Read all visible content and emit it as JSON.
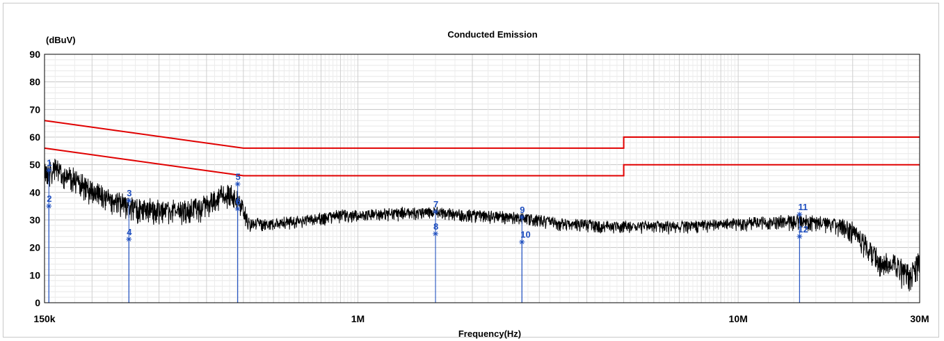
{
  "chart_data": {
    "type": "line",
    "title": "Conducted Emission",
    "ylabel": "(dBuV)",
    "xlabel": "Frequency(Hz)",
    "x_scale": "log",
    "xlim": [
      150000,
      30000000
    ],
    "ylim": [
      0,
      90
    ],
    "yticks": [
      0,
      10,
      20,
      30,
      40,
      50,
      60,
      70,
      80,
      90
    ],
    "xticks": [
      {
        "value": 150000,
        "label": "150k"
      },
      {
        "value": 1000000,
        "label": "1M"
      },
      {
        "value": 10000000,
        "label": "10M"
      },
      {
        "value": 30000000,
        "label": "30M"
      }
    ],
    "grid": true,
    "limit_lines": [
      {
        "points": [
          [
            150000,
            66
          ],
          [
            500000,
            56
          ],
          [
            5000000,
            56
          ],
          [
            5000000,
            60
          ],
          [
            30000000,
            60
          ]
        ],
        "color": "#e00000"
      },
      {
        "points": [
          [
            150000,
            56
          ],
          [
            500000,
            46
          ],
          [
            5000000,
            46
          ],
          [
            5000000,
            50
          ],
          [
            30000000,
            50
          ]
        ],
        "color": "#e00000"
      }
    ],
    "trace": {
      "color": "#000000",
      "envelope": [
        [
          150000,
          50
        ],
        [
          160000,
          51
        ],
        [
          175000,
          48
        ],
        [
          190000,
          45
        ],
        [
          210000,
          42
        ],
        [
          230000,
          39
        ],
        [
          260000,
          37
        ],
        [
          300000,
          36
        ],
        [
          350000,
          36
        ],
        [
          400000,
          38
        ],
        [
          430000,
          41
        ],
        [
          460000,
          42
        ],
        [
          490000,
          38
        ],
        [
          520000,
          30
        ],
        [
          600000,
          30
        ],
        [
          700000,
          31
        ],
        [
          800000,
          32
        ],
        [
          900000,
          33
        ],
        [
          1000000,
          33
        ],
        [
          1300000,
          34
        ],
        [
          1600000,
          34
        ],
        [
          2000000,
          33
        ],
        [
          2700000,
          32
        ],
        [
          3500000,
          30
        ],
        [
          5000000,
          29
        ],
        [
          7000000,
          29
        ],
        [
          10000000,
          30
        ],
        [
          13000000,
          31
        ],
        [
          16000000,
          31
        ],
        [
          18000000,
          30
        ],
        [
          20000000,
          28
        ],
        [
          22000000,
          22
        ],
        [
          24000000,
          16
        ],
        [
          26000000,
          17
        ],
        [
          27000000,
          14
        ],
        [
          28000000,
          12
        ],
        [
          30000000,
          18
        ]
      ],
      "noise": [
        [
          150000,
          6
        ],
        [
          500000,
          6
        ],
        [
          520000,
          3
        ],
        [
          10000000,
          3
        ],
        [
          18000000,
          4
        ],
        [
          22000000,
          6
        ],
        [
          30000000,
          7
        ]
      ]
    },
    "markers": [
      {
        "label": "1",
        "freq": 154000,
        "level": 48
      },
      {
        "label": "2",
        "freq": 154000,
        "level": 35
      },
      {
        "label": "3",
        "freq": 250000,
        "level": 37
      },
      {
        "label": "4",
        "freq": 250000,
        "level": 23
      },
      {
        "label": "5",
        "freq": 483000,
        "level": 43
      },
      {
        "label": "6",
        "freq": 483000,
        "level": 34
      },
      {
        "label": "7",
        "freq": 1600000,
        "level": 33
      },
      {
        "label": "8",
        "freq": 1600000,
        "level": 25
      },
      {
        "label": "9",
        "freq": 2700000,
        "level": 31
      },
      {
        "label": "10",
        "freq": 2700000,
        "level": 22
      },
      {
        "label": "11",
        "freq": 14500000,
        "level": 32
      },
      {
        "label": "12",
        "freq": 14500000,
        "level": 24
      }
    ]
  }
}
